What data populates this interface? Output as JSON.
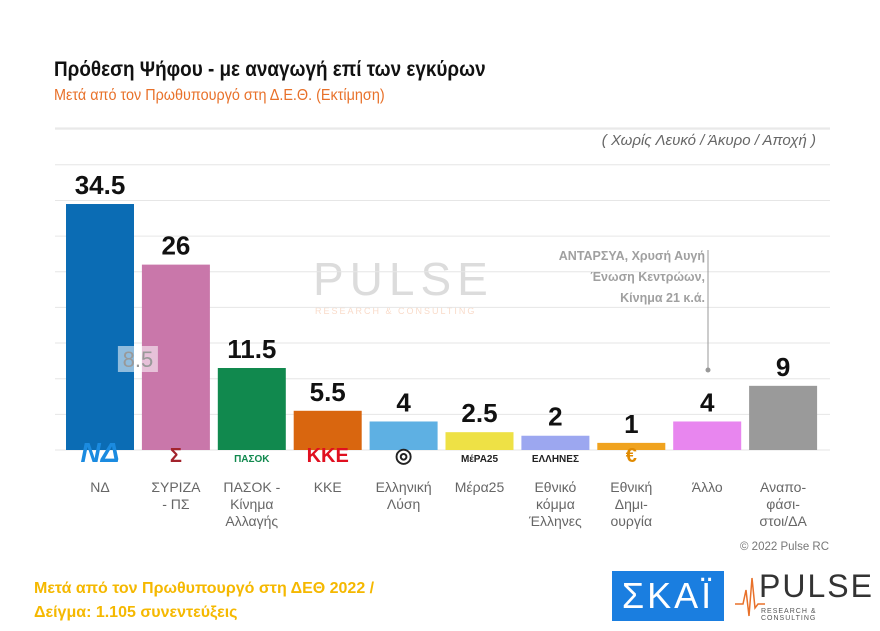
{
  "chart_data": {
    "type": "bar",
    "title": "Πρόθεση Ψήφου - με αναγωγή επί των εγκύρων",
    "subtitle": "Μετά από τον Πρωθυπουργό στη Δ.Ε.Θ.   (Εκτίμηση)",
    "note": "( Χωρίς Λευκό / Άκυρο / Αποχή )",
    "categories": [
      [
        "ΝΔ"
      ],
      [
        "ΣΥΡΙΖΑ",
        "- ΠΣ"
      ],
      [
        "ΠΑΣΟΚ -",
        "Κίνημα",
        "Αλλαγής"
      ],
      [
        "ΚΚΕ"
      ],
      [
        "Ελληνική",
        "Λύση"
      ],
      [
        "Μέρα25"
      ],
      [
        "Εθνικό",
        "κόμμα",
        "Έλληνες"
      ],
      [
        "Εθνική",
        "Δημι-",
        "ουργία"
      ],
      [
        "Άλλο"
      ],
      [
        "Αναπο-",
        "φάσι-",
        "στοι/ΔΑ"
      ]
    ],
    "values": [
      34.5,
      26,
      11.5,
      5.5,
      4,
      2.5,
      2,
      1,
      4,
      9
    ],
    "value_labels": [
      "34.5",
      "26",
      "11.5",
      "5.5",
      "4",
      "2.5",
      "2",
      "1",
      "4",
      "9"
    ],
    "colors": [
      "#0b6cb4",
      "#c977aa",
      "#11894e",
      "#d9660f",
      "#5eb0e3",
      "#eee145",
      "#9ca7f0",
      "#f0a31f",
      "#e886ef",
      "#9a9a9a"
    ],
    "logos": [
      "ΝΔ",
      "Σ",
      "ΠΑΣΟΚ",
      "ΚΚΕ",
      "◎",
      "ΜέΡΑ25",
      "ΕΛΛΗΝΕΣ",
      "€",
      "",
      ""
    ],
    "inner_label": "8.5",
    "ylim": [
      0,
      45
    ],
    "grid": true,
    "legend": "none"
  },
  "annotation": [
    "ΑΝΤΑΡΣΥΑ, Χρυσή Αυγή",
    "Ένωση Κεντρώων,",
    "Κίνημα 21    κ.ά."
  ],
  "watermark": {
    "name": "PULSE",
    "tagline": "RESEARCH & CONSULTING"
  },
  "copyright": "© 2022 Pulse RC",
  "footer": [
    "Μετά από τον Πρωθυπουργό στη ΔΕΘ  2022  /",
    "Δείγμα:  1.105 συνεντεύξεις"
  ],
  "logos": {
    "skai": "ΣΚΑΪ",
    "pulse": "PULSE",
    "pulse_tagline": "RESEARCH & CONSULTING"
  }
}
